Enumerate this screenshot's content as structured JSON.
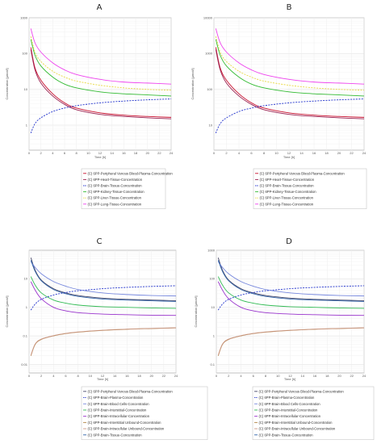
{
  "chart_data": [
    {
      "type": "line",
      "panel_label": "A",
      "xlabel": "Time [h]",
      "ylabel": "Concentration [µmol/l]",
      "yscale": "log",
      "ylim": [
        0.2,
        1000
      ],
      "xlim": [
        0,
        24
      ],
      "x_ticks": [
        0,
        2,
        4,
        6,
        8,
        10,
        12,
        14,
        16,
        18,
        20,
        22,
        24
      ],
      "y_ticks": [
        1,
        10,
        100,
        1000
      ],
      "y_tick_labels": [
        "1",
        "10",
        "100",
        "1000"
      ],
      "grid": true,
      "legend_position": "bottom",
      "series": [
        {
          "name": "(C) 6PP-Peripheral Venous Blood-Plasma-Concentration",
          "color": "#c8102e",
          "dash": "solid",
          "x": [
            0.3,
            1,
            2,
            4,
            6,
            8,
            12,
            16,
            20,
            24
          ],
          "values": [
            150,
            40,
            18,
            7.5,
            4.2,
            3.0,
            2.2,
            1.9,
            1.75,
            1.65
          ]
        },
        {
          "name": "(C) 6PP-Heart-Tissue-Concentration",
          "color": "#9a2050",
          "dash": "solid",
          "x": [
            0.3,
            1,
            2,
            4,
            6,
            8,
            12,
            16,
            20,
            24
          ],
          "values": [
            130,
            35,
            15,
            6.5,
            3.8,
            2.7,
            2.0,
            1.75,
            1.6,
            1.5
          ]
        },
        {
          "name": "(C) 6PP-Brain-Tissue-Concentration",
          "color": "#2233cc",
          "dash": "dashed",
          "x": [
            0.3,
            1,
            2,
            4,
            6,
            8,
            12,
            16,
            20,
            24
          ],
          "values": [
            0.6,
            1.1,
            1.6,
            2.4,
            3.0,
            3.5,
            4.2,
            4.7,
            5.1,
            5.4
          ]
        },
        {
          "name": "(C) 6PP-Kidney-Tissue-Concentration",
          "color": "#33bb33",
          "dash": "solid",
          "x": [
            0.3,
            1,
            2,
            4,
            6,
            8,
            12,
            16,
            20,
            24
          ],
          "values": [
            250,
            90,
            45,
            22,
            14,
            11,
            8.5,
            7.5,
            7,
            6.5
          ]
        },
        {
          "name": "(C) 6PP-Liver-Tissue-Concentration",
          "color": "#e8d840",
          "dash": "dashed",
          "x": [
            0.3,
            1,
            2,
            4,
            6,
            8,
            12,
            16,
            20,
            24
          ],
          "values": [
            300,
            110,
            60,
            32,
            22,
            17,
            13,
            11,
            10,
            9.5
          ]
        },
        {
          "name": "(C) 6PP-Lung-Tissue-Concentration",
          "color": "#ee44ee",
          "dash": "solid",
          "x": [
            0.3,
            1,
            2,
            4,
            6,
            8,
            12,
            16,
            20,
            24
          ],
          "values": [
            500,
            200,
            110,
            55,
            35,
            26,
            19,
            16,
            15,
            14
          ]
        }
      ]
    },
    {
      "type": "line",
      "panel_label": "B",
      "xlabel": "Time [h]",
      "ylabel": "Concentration [µmol/l]",
      "yscale": "log",
      "ylim": [
        2,
        10000
      ],
      "xlim": [
        0,
        24
      ],
      "x_ticks": [
        0,
        2,
        4,
        6,
        8,
        10,
        12,
        14,
        16,
        18,
        20,
        22,
        24
      ],
      "y_ticks": [
        10,
        100,
        1000,
        10000
      ],
      "y_tick_labels": [
        "10",
        "100",
        "1000",
        "10000"
      ],
      "grid": true,
      "legend_position": "bottom",
      "series": [
        {
          "name": "(C) 6PP-Peripheral Venous Blood-Plasma-Concentration",
          "color": "#c8102e",
          "dash": "solid",
          "x": [
            0.3,
            1,
            2,
            4,
            6,
            8,
            12,
            16,
            20,
            24
          ],
          "values": [
            1500,
            400,
            180,
            75,
            42,
            30,
            22,
            19,
            17.5,
            16.5
          ]
        },
        {
          "name": "(C) 6PP-Heart-Tissue-Concentration",
          "color": "#9a2050",
          "dash": "solid",
          "x": [
            0.3,
            1,
            2,
            4,
            6,
            8,
            12,
            16,
            20,
            24
          ],
          "values": [
            1300,
            350,
            150,
            65,
            38,
            27,
            20,
            17.5,
            16,
            15
          ]
        },
        {
          "name": "(C) 6PP-Brain-Tissue-Concentration",
          "color": "#2233cc",
          "dash": "dashed",
          "x": [
            0.3,
            1,
            2,
            4,
            6,
            8,
            12,
            16,
            20,
            24
          ],
          "values": [
            6,
            11,
            16,
            24,
            30,
            35,
            42,
            47,
            51,
            54
          ]
        },
        {
          "name": "(C) 6PP-Kidney-Tissue-Concentration",
          "color": "#33bb33",
          "dash": "solid",
          "x": [
            0.3,
            1,
            2,
            4,
            6,
            8,
            12,
            16,
            20,
            24
          ],
          "values": [
            2500,
            900,
            450,
            220,
            140,
            110,
            85,
            75,
            70,
            65
          ]
        },
        {
          "name": "(C) 6PP-Liver-Tissue-Concentration",
          "color": "#e8d840",
          "dash": "dashed",
          "x": [
            0.3,
            1,
            2,
            4,
            6,
            8,
            12,
            16,
            20,
            24
          ],
          "values": [
            3000,
            1100,
            600,
            320,
            220,
            170,
            130,
            110,
            100,
            95
          ]
        },
        {
          "name": "(C) 6PP-Lung-Tissue-Concentration",
          "color": "#ee44ee",
          "dash": "solid",
          "x": [
            0.3,
            1,
            2,
            4,
            6,
            8,
            12,
            16,
            20,
            24
          ],
          "values": [
            5000,
            2000,
            1100,
            550,
            350,
            260,
            190,
            160,
            150,
            140
          ]
        }
      ]
    },
    {
      "type": "line",
      "panel_label": "C",
      "xlabel": "Time [h]",
      "ylabel": "Concentration [µmol/l]",
      "yscale": "log",
      "ylim": [
        0.005,
        100
      ],
      "xlim": [
        0,
        24
      ],
      "x_ticks": [
        0,
        2,
        4,
        6,
        8,
        10,
        12,
        14,
        16,
        18,
        20,
        22,
        24
      ],
      "y_ticks": [
        0.01,
        0.1,
        1,
        10
      ],
      "y_tick_labels": [
        "0.01",
        "0.1",
        "1",
        "10"
      ],
      "grid": true,
      "legend_position": "bottom",
      "series": [
        {
          "name": "(C) 6PP-Peripheral Venous Blood-Plasma-Concentration",
          "color": "#4a4a6a",
          "dash": "solid",
          "x": [
            0.3,
            1,
            2,
            4,
            6,
            8,
            12,
            16,
            20,
            24
          ],
          "values": [
            55,
            20,
            9,
            4.5,
            3.2,
            2.6,
            2.1,
            1.9,
            1.8,
            1.7
          ]
        },
        {
          "name": "(C) 6PP-Brain-Plasma-Concentration",
          "color": "#2233cc",
          "dash": "dashed",
          "x": [
            0.3,
            1,
            2,
            4,
            6,
            8,
            12,
            16,
            20,
            24
          ],
          "values": [
            0.8,
            1.3,
            1.9,
            2.7,
            3.3,
            3.8,
            4.5,
            5.0,
            5.4,
            5.7
          ]
        },
        {
          "name": "(C) 6PP-Brain-Blood Cells-Concentration",
          "color": "#7788dd",
          "dash": "solid",
          "x": [
            0.3,
            1,
            2,
            4,
            6,
            8,
            12,
            16,
            20,
            24
          ],
          "values": [
            40,
            25,
            15,
            8,
            5.5,
            4.2,
            3.2,
            2.8,
            2.6,
            2.5
          ]
        },
        {
          "name": "(C) 6PP-Brain-Interstitial-Concentration",
          "color": "#33bb55",
          "dash": "solid",
          "x": [
            0.3,
            1,
            2,
            4,
            6,
            8,
            12,
            16,
            20,
            24
          ],
          "values": [
            12,
            6,
            3.2,
            1.8,
            1.4,
            1.2,
            1.05,
            1.0,
            0.95,
            0.92
          ]
        },
        {
          "name": "(C) 6PP-Brain-Intracellular-Concentration",
          "color": "#9933cc",
          "dash": "solid",
          "x": [
            0.3,
            1,
            2,
            4,
            6,
            8,
            12,
            16,
            20,
            24
          ],
          "values": [
            8,
            4,
            2,
            1.0,
            0.75,
            0.65,
            0.58,
            0.55,
            0.53,
            0.52
          ]
        },
        {
          "name": "(C) 6PP-Brain-Interstitial Unbound-Concentration",
          "color": "#b08040",
          "dash": "solid",
          "x": [
            0.3,
            1,
            2,
            4,
            6,
            8,
            12,
            16,
            20,
            24
          ],
          "values": [
            0.02,
            0.05,
            0.075,
            0.1,
            0.12,
            0.135,
            0.155,
            0.17,
            0.18,
            0.19
          ]
        },
        {
          "name": "(C) 6PP-Brain-Intracellular Unbound-Concentration",
          "color": "#cc9988",
          "dash": "solid",
          "x": [
            0.3,
            1,
            2,
            4,
            6,
            8,
            12,
            16,
            20,
            24
          ],
          "values": [
            0.021,
            0.052,
            0.077,
            0.102,
            0.122,
            0.137,
            0.157,
            0.172,
            0.182,
            0.192
          ]
        },
        {
          "name": "(C) 6PP-Brain-Tissue-Concentration",
          "color": "#3366aa",
          "dash": "solid",
          "x": [
            0.3,
            1,
            2,
            4,
            6,
            8,
            12,
            16,
            20,
            24
          ],
          "values": [
            45,
            18,
            8.5,
            4.2,
            3.0,
            2.4,
            1.95,
            1.8,
            1.7,
            1.6
          ]
        }
      ]
    },
    {
      "type": "line",
      "panel_label": "D",
      "xlabel": "Time [h]",
      "ylabel": "Concentration [µmol/l]",
      "yscale": "log",
      "ylim": [
        0.05,
        1000
      ],
      "xlim": [
        0,
        24
      ],
      "x_ticks": [
        0,
        2,
        4,
        6,
        8,
        10,
        12,
        14,
        16,
        18,
        20,
        22,
        24
      ],
      "y_ticks": [
        0.1,
        1,
        10,
        100,
        1000
      ],
      "y_tick_labels": [
        "0.1",
        "1",
        "10",
        "100",
        "1000"
      ],
      "grid": true,
      "legend_position": "bottom",
      "series": [
        {
          "name": "(C) 6PP-Peripheral Venous Blood-Plasma-Concentration",
          "color": "#4a4a6a",
          "dash": "solid",
          "x": [
            0.3,
            1,
            2,
            4,
            6,
            8,
            12,
            16,
            20,
            24
          ],
          "values": [
            550,
            200,
            90,
            45,
            32,
            26,
            21,
            19,
            18,
            17
          ]
        },
        {
          "name": "(C) 6PP-Brain-Plasma-Concentration",
          "color": "#2233cc",
          "dash": "dashed",
          "x": [
            0.3,
            1,
            2,
            4,
            6,
            8,
            12,
            16,
            20,
            24
          ],
          "values": [
            8,
            13,
            19,
            27,
            33,
            38,
            45,
            50,
            54,
            57
          ]
        },
        {
          "name": "(C) 6PP-Brain-Blood Cells-Concentration",
          "color": "#7788dd",
          "dash": "solid",
          "x": [
            0.3,
            1,
            2,
            4,
            6,
            8,
            12,
            16,
            20,
            24
          ],
          "values": [
            400,
            250,
            150,
            80,
            55,
            42,
            32,
            28,
            26,
            25
          ]
        },
        {
          "name": "(C) 6PP-Brain-Interstitial-Concentration",
          "color": "#33bb55",
          "dash": "solid",
          "x": [
            0.3,
            1,
            2,
            4,
            6,
            8,
            12,
            16,
            20,
            24
          ],
          "values": [
            120,
            60,
            32,
            18,
            14,
            12,
            10.5,
            10,
            9.5,
            9.2
          ]
        },
        {
          "name": "(C) 6PP-Brain-Intracellular-Concentration",
          "color": "#9933cc",
          "dash": "solid",
          "x": [
            0.3,
            1,
            2,
            4,
            6,
            8,
            12,
            16,
            20,
            24
          ],
          "values": [
            80,
            40,
            20,
            10,
            7.5,
            6.5,
            5.8,
            5.5,
            5.3,
            5.2
          ]
        },
        {
          "name": "(C) 6PP-Brain-Interstitial Unbound-Concentration",
          "color": "#b08040",
          "dash": "solid",
          "x": [
            0.3,
            1,
            2,
            4,
            6,
            8,
            12,
            16,
            20,
            24
          ],
          "values": [
            0.2,
            0.5,
            0.75,
            1.0,
            1.2,
            1.35,
            1.55,
            1.7,
            1.8,
            1.9
          ]
        },
        {
          "name": "(C) 6PP-Brain-Intracellular Unbound-Concentration",
          "color": "#cc9988",
          "dash": "solid",
          "x": [
            0.3,
            1,
            2,
            4,
            6,
            8,
            12,
            16,
            20,
            24
          ],
          "values": [
            0.21,
            0.52,
            0.77,
            1.02,
            1.22,
            1.37,
            1.57,
            1.72,
            1.82,
            1.92
          ]
        },
        {
          "name": "(C) 6PP-Brain-Tissue-Concentration",
          "color": "#3366aa",
          "dash": "solid",
          "x": [
            0.3,
            1,
            2,
            4,
            6,
            8,
            12,
            16,
            20,
            24
          ],
          "values": [
            450,
            180,
            85,
            42,
            30,
            24,
            19.5,
            18,
            17,
            16
          ]
        }
      ]
    }
  ]
}
